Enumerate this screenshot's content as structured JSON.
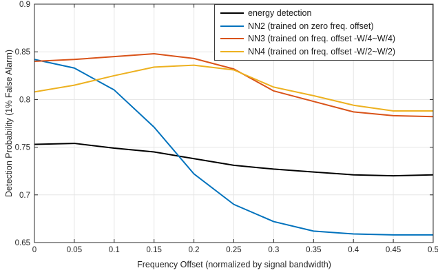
{
  "chart_data": {
    "type": "line",
    "title": "",
    "xlabel": "Frequency Offset (normalized by signal bandwidth)",
    "ylabel": "Detection Probability (1% False Alarm)",
    "xlim": [
      0,
      0.5
    ],
    "ylim": [
      0.65,
      0.9
    ],
    "grid": true,
    "legend_position": "top-right",
    "xticks": [
      0,
      0.05,
      0.1,
      0.15,
      0.2,
      0.25,
      0.3,
      0.35,
      0.4,
      0.45,
      0.5
    ],
    "xtick_labels": [
      "0",
      "0.05",
      "0.1",
      "0.15",
      "0.2",
      "0.25",
      "0.3",
      "0.35",
      "0.4",
      "0.45",
      "0.5"
    ],
    "yticks": [
      0.65,
      0.7,
      0.75,
      0.8,
      0.85,
      0.9
    ],
    "ytick_labels": [
      "0.65",
      "0.7",
      "0.75",
      "0.8",
      "0.85",
      "0.9"
    ],
    "x": [
      0,
      0.05,
      0.1,
      0.15,
      0.2,
      0.25,
      0.3,
      0.35,
      0.4,
      0.45,
      0.5
    ],
    "series": [
      {
        "name": "energy detection",
        "color": "#000000",
        "values": [
          0.753,
          0.754,
          0.749,
          0.745,
          0.738,
          0.731,
          0.727,
          0.724,
          0.721,
          0.72,
          0.721
        ]
      },
      {
        "name": "NN2 (trained on zero freq. offset)",
        "color": "#0072BD",
        "values": [
          0.842,
          0.833,
          0.81,
          0.771,
          0.722,
          0.69,
          0.672,
          0.662,
          0.659,
          0.658,
          0.658
        ]
      },
      {
        "name": "NN3 (trained on freq. offset -W/4~W/4)",
        "color": "#D95319",
        "values": [
          0.84,
          0.842,
          0.845,
          0.848,
          0.843,
          0.832,
          0.809,
          0.798,
          0.787,
          0.783,
          0.782
        ]
      },
      {
        "name": "NN4 (trained on freq. offset -W/2~W/2)",
        "color": "#EDB120",
        "values": [
          0.808,
          0.815,
          0.825,
          0.834,
          0.836,
          0.831,
          0.813,
          0.804,
          0.794,
          0.788,
          0.788
        ]
      }
    ],
    "style": {
      "background": "#ffffff",
      "grid_color": "#e5e5e5",
      "axis_color": "#2b2b2b",
      "tick_label_color": "#262626",
      "line_width": 2
    }
  }
}
